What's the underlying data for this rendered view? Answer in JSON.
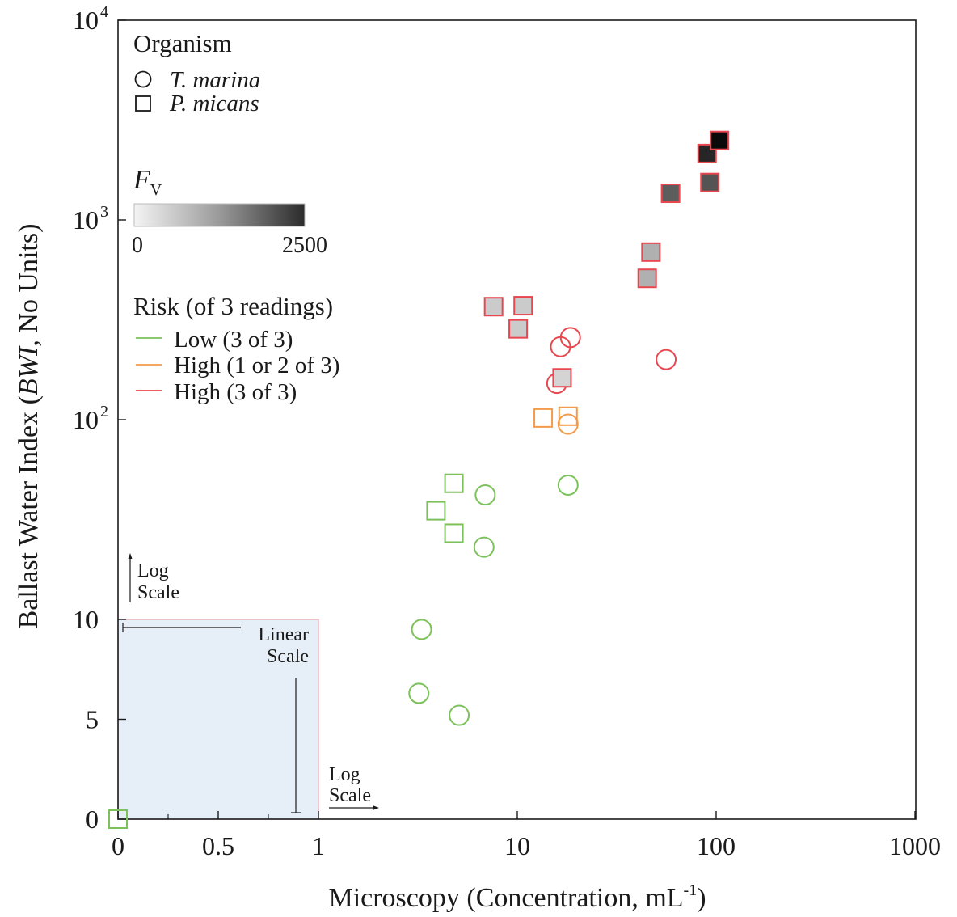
{
  "chart_data": {
    "type": "scatter",
    "xlabel": "Microscopy (Concentration, mL",
    "xlabel_sup": "-1",
    "xlabel_end": ")",
    "ylabel_pre": "Ballast Water Index (",
    "ylabel_italic": "BWI",
    "ylabel_post": ", No Units)",
    "x_ticks": [
      {
        "value": 0,
        "label": "0"
      },
      {
        "value": 0.5,
        "label": "0.5"
      },
      {
        "value": 1,
        "label": "1"
      },
      {
        "value": 10,
        "label": "10"
      },
      {
        "value": 100,
        "label": "100"
      },
      {
        "value": 1000,
        "label": "1000"
      }
    ],
    "y_ticks": [
      {
        "value": 0,
        "label": "0",
        "sup": ""
      },
      {
        "value": 5,
        "label": "5",
        "sup": ""
      },
      {
        "value": 10,
        "label": "10",
        "sup": ""
      },
      {
        "value": 100,
        "label": "10",
        "sup": "2"
      },
      {
        "value": 1000,
        "label": "10",
        "sup": "3"
      },
      {
        "value": 10000,
        "label": "10",
        "sup": "4"
      }
    ],
    "xlim": [
      0,
      1000
    ],
    "ylim": [
      0,
      10000
    ],
    "x_scale": "linear from 0 to 1, log from 1 to 1000",
    "y_scale": "linear from 0 to 10, log from 10 to 10000",
    "scale_annotations": {
      "y_log": [
        "Log",
        "Scale"
      ],
      "linear": [
        "Linear",
        "Scale"
      ],
      "x_log": [
        "Log",
        "Scale"
      ]
    },
    "legend_organism": {
      "title": "Organism",
      "items": [
        {
          "marker": "circle",
          "label": "T. marina"
        },
        {
          "marker": "square",
          "label": "P. micans"
        }
      ]
    },
    "colorbar": {
      "title": "F",
      "title_sub": "V",
      "min_label": "0",
      "max_label": "2500",
      "min": 0,
      "max": 2500
    },
    "legend_risk": {
      "title": "Risk (of 3 readings)",
      "items": [
        {
          "key": "low",
          "label": "Low (3 of 3)",
          "color": "#7cc15a"
        },
        {
          "key": "mid",
          "label": "High (1 or 2 of 3)",
          "color": "#f39b4a"
        },
        {
          "key": "high",
          "label": "High (3 of 3)",
          "color": "#e8474f"
        }
      ]
    },
    "colors": {
      "low": "#7cc15a",
      "mid": "#f39b4a",
      "high": "#e8474f",
      "linear_region": "#e6eef8"
    },
    "points": [
      {
        "organism": "square",
        "risk": "low",
        "x": 0,
        "y": 0,
        "fv": null
      },
      {
        "organism": "circle",
        "risk": "low",
        "x": 3.3,
        "y": 9.5,
        "fv": null
      },
      {
        "organism": "circle",
        "risk": "low",
        "x": 3.2,
        "y": 6.3,
        "fv": null
      },
      {
        "organism": "circle",
        "risk": "low",
        "x": 5.1,
        "y": 5.2,
        "fv": null
      },
      {
        "organism": "circle",
        "risk": "low",
        "x": 6.8,
        "y": 23,
        "fv": null
      },
      {
        "organism": "circle",
        "risk": "low",
        "x": 6.9,
        "y": 42,
        "fv": null
      },
      {
        "organism": "circle",
        "risk": "low",
        "x": 18,
        "y": 47,
        "fv": null
      },
      {
        "organism": "square",
        "risk": "low",
        "x": 3.9,
        "y": 35,
        "fv": null
      },
      {
        "organism": "square",
        "risk": "low",
        "x": 4.8,
        "y": 27,
        "fv": null
      },
      {
        "organism": "square",
        "risk": "low",
        "x": 4.8,
        "y": 48,
        "fv": null
      },
      {
        "organism": "square",
        "risk": "mid",
        "x": 13.5,
        "y": 102,
        "fv": null
      },
      {
        "organism": "square",
        "risk": "mid",
        "x": 18,
        "y": 104,
        "fv": null
      },
      {
        "organism": "circle",
        "risk": "mid",
        "x": 18,
        "y": 95,
        "fv": null
      },
      {
        "organism": "circle",
        "risk": "high",
        "x": 15.8,
        "y": 152,
        "fv": null
      },
      {
        "organism": "square",
        "risk": "high",
        "x": 16.8,
        "y": 162,
        "fv": 300
      },
      {
        "organism": "circle",
        "risk": "high",
        "x": 16.5,
        "y": 232,
        "fv": null
      },
      {
        "organism": "circle",
        "risk": "high",
        "x": 18.5,
        "y": 258,
        "fv": null
      },
      {
        "organism": "circle",
        "risk": "high",
        "x": 56,
        "y": 200,
        "fv": null
      },
      {
        "organism": "square",
        "risk": "high",
        "x": 7.6,
        "y": 368,
        "fv": 400
      },
      {
        "organism": "square",
        "risk": "high",
        "x": 10.7,
        "y": 372,
        "fv": 400
      },
      {
        "organism": "square",
        "risk": "high",
        "x": 10.1,
        "y": 285,
        "fv": 400
      },
      {
        "organism": "square",
        "risk": "high",
        "x": 45,
        "y": 510,
        "fv": 700
      },
      {
        "organism": "square",
        "risk": "high",
        "x": 47,
        "y": 690,
        "fv": 700
      },
      {
        "organism": "square",
        "risk": "high",
        "x": 59,
        "y": 1360,
        "fv": 1600
      },
      {
        "organism": "square",
        "risk": "high",
        "x": 93,
        "y": 1540,
        "fv": 1700
      },
      {
        "organism": "square",
        "risk": "high",
        "x": 90,
        "y": 2150,
        "fv": 2200
      },
      {
        "organism": "square",
        "risk": "high",
        "x": 104,
        "y": 2500,
        "fv": 2500
      }
    ]
  }
}
